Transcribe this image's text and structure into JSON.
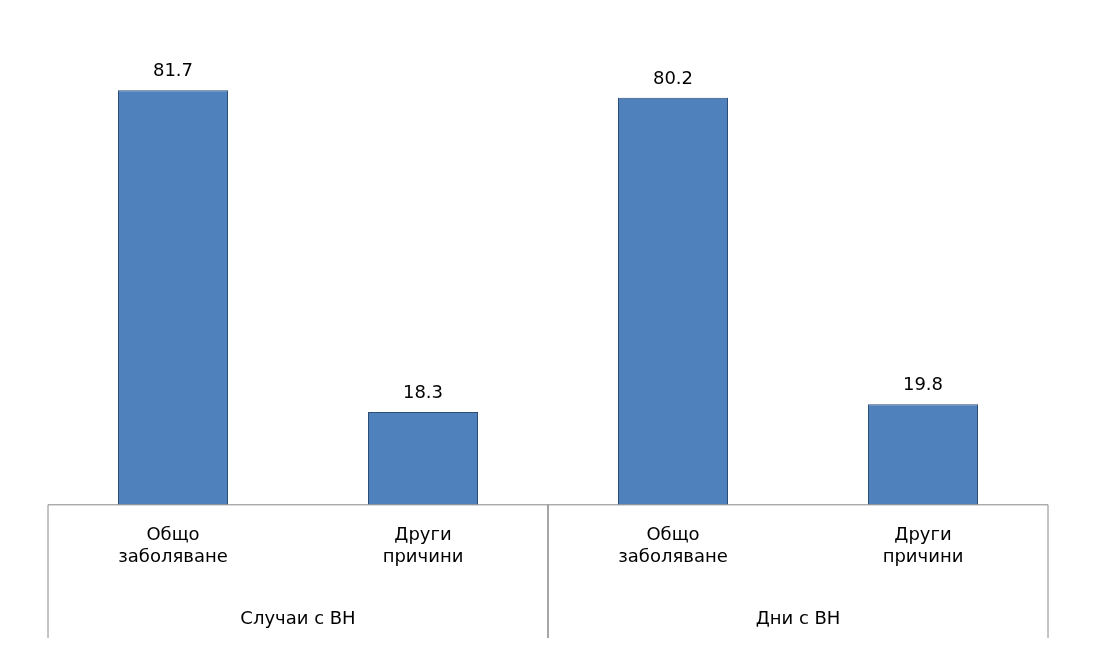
{
  "chart_data": {
    "type": "bar",
    "categories": [
      "Общо заболяване",
      "Други причини",
      "Общо заболяване",
      "Други причини"
    ],
    "values": [
      81.7,
      18.3,
      80.2,
      19.8
    ],
    "color": "#4f81bd",
    "data_labels": true,
    "legend": false,
    "annotations": [
      "Случаи с ВН",
      "Дни с ВН"
    ]
  }
}
